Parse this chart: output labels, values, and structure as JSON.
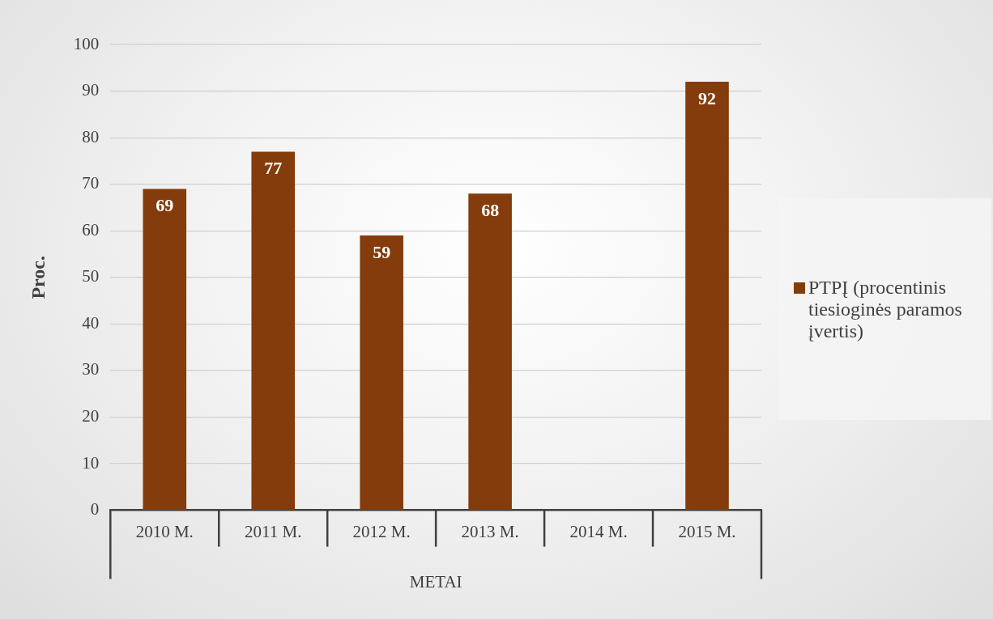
{
  "chart_data": {
    "type": "bar",
    "xlabel": "METAI",
    "ylabel": "Proc.",
    "categories": [
      "2010 M.",
      "2011 M.",
      "2012 M.",
      "2013 M.",
      "2014 M.",
      "2015 M."
    ],
    "series": [
      {
        "name": "PTPĮ (procentinis tiesioginės paramos įvertis)",
        "color": "#843c0c",
        "values": [
          69,
          77,
          59,
          68,
          null,
          92
        ]
      }
    ],
    "ylim": [
      0,
      100
    ],
    "yticks": [
      0,
      10,
      20,
      30,
      40,
      50,
      60,
      70,
      80,
      90,
      100
    ],
    "grid": "y",
    "legend": "right",
    "data_labels": true
  }
}
